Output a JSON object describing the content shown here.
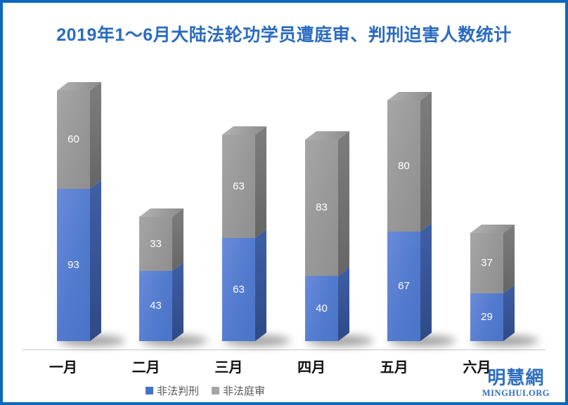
{
  "frame": {
    "border_color": "#0d68bd",
    "background": "#ffffff"
  },
  "chart_data": {
    "type": "bar",
    "variant": "3d-stacked-column",
    "title": "2019年1～6月大陆法轮功学员遭庭审、判刑迫害人数统计",
    "title_color": "#2b6bc0",
    "categories": [
      "一月",
      "二月",
      "三月",
      "四月",
      "五月",
      "六月"
    ],
    "series": [
      {
        "name": "非法判刑",
        "color": "#4472c4",
        "values": [
          93,
          43,
          63,
          40,
          67,
          29
        ]
      },
      {
        "name": "非法庭审",
        "color": "#a5a5a5",
        "values": [
          60,
          33,
          63,
          83,
          80,
          37
        ]
      }
    ],
    "data_labels": true,
    "legend_position": "bottom-center",
    "gridlines": false,
    "y_axis_visible": false,
    "axis_line_color": "#c9c9c9"
  },
  "watermark": {
    "cjk": "明慧網",
    "latin": "MINGHUI.ORG",
    "color": "#2f6fc0"
  }
}
